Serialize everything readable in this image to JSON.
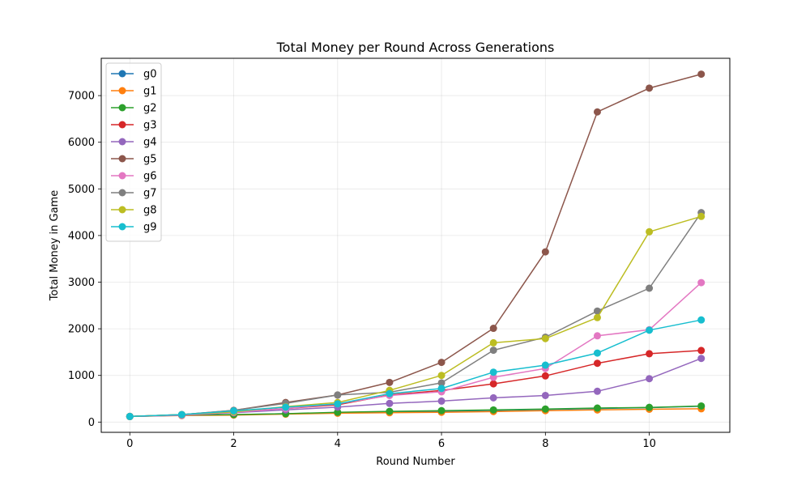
{
  "chart_data": {
    "type": "line",
    "title": "Total Money per Round Across Generations",
    "xlabel": "Round Number",
    "ylabel": "Total Money in Game",
    "x": [
      0,
      1,
      2,
      3,
      4,
      5,
      6,
      7,
      8,
      9,
      10,
      11
    ],
    "xlim": [
      -0.55,
      11.55
    ],
    "ylim": [
      -220,
      7800
    ],
    "xticks": [
      0,
      2,
      4,
      6,
      8,
      10
    ],
    "yticks": [
      0,
      1000,
      2000,
      3000,
      4000,
      5000,
      6000,
      7000
    ],
    "grid": true,
    "legend_position": "top-left",
    "series": [
      {
        "name": "g0",
        "color": "#1f77b4",
        "values": [
          120,
          150,
          160,
          180,
          200,
          220,
          230,
          250,
          270,
          290,
          310,
          340
        ]
      },
      {
        "name": "g1",
        "color": "#ff7f0e",
        "values": [
          120,
          140,
          150,
          170,
          190,
          200,
          210,
          225,
          245,
          260,
          275,
          285
        ]
      },
      {
        "name": "g2",
        "color": "#2ca02c",
        "values": [
          120,
          150,
          160,
          180,
          210,
          230,
          245,
          260,
          280,
          300,
          315,
          345
        ]
      },
      {
        "name": "g3",
        "color": "#d62728",
        "values": [
          120,
          155,
          220,
          290,
          370,
          580,
          680,
          820,
          990,
          1260,
          1465,
          1535
        ]
      },
      {
        "name": "g4",
        "color": "#9467bd",
        "values": [
          120,
          145,
          200,
          260,
          320,
          400,
          450,
          520,
          570,
          660,
          930,
          1365
        ]
      },
      {
        "name": "g5",
        "color": "#8c564b",
        "values": [
          120,
          160,
          250,
          420,
          580,
          850,
          1280,
          2010,
          3650,
          6650,
          7160,
          7460
        ]
      },
      {
        "name": "g6",
        "color": "#e377c2",
        "values": [
          120,
          150,
          210,
          290,
          390,
          570,
          650,
          960,
          1150,
          1850,
          1980,
          2990
        ]
      },
      {
        "name": "g7",
        "color": "#7f7f7f",
        "values": [
          120,
          160,
          250,
          400,
          580,
          640,
          840,
          1540,
          1820,
          2380,
          2870,
          4490
        ]
      },
      {
        "name": "g8",
        "color": "#bcbd22",
        "values": [
          120,
          160,
          220,
          330,
          420,
          680,
          1000,
          1700,
          1790,
          2240,
          4080,
          4410
        ]
      },
      {
        "name": "g9",
        "color": "#17becf",
        "values": [
          120,
          160,
          240,
          320,
          390,
          610,
          720,
          1070,
          1220,
          1480,
          1970,
          2190
        ]
      }
    ]
  }
}
